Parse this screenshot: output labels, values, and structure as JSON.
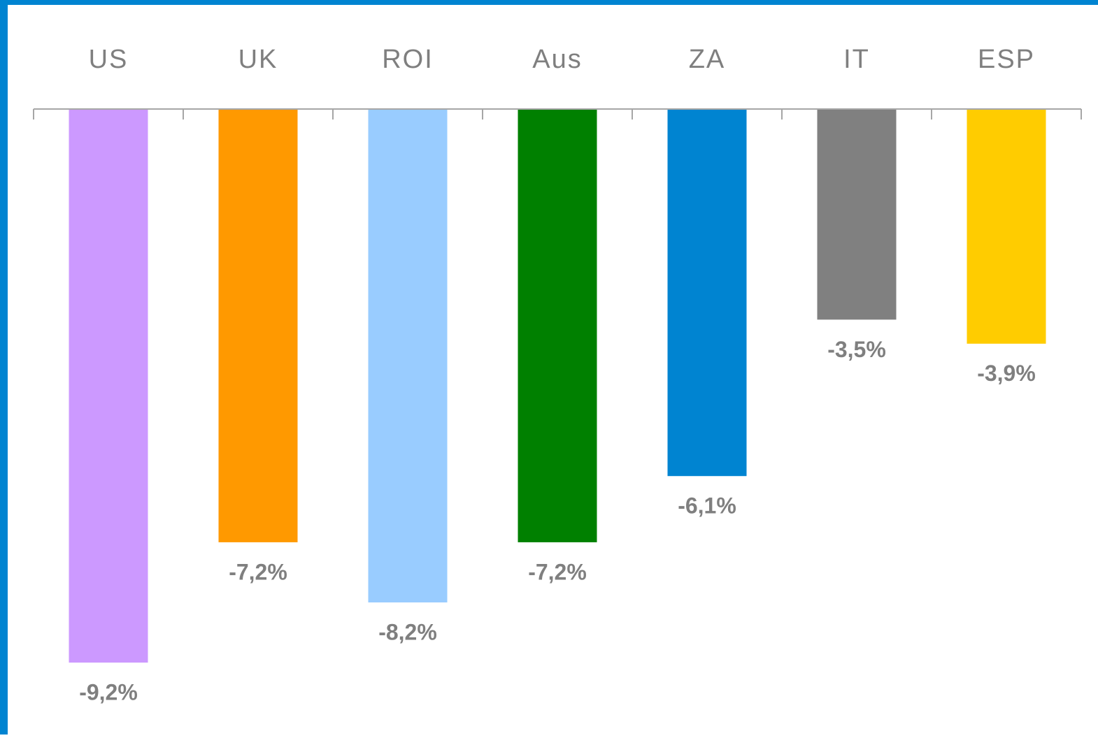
{
  "chart_data": {
    "type": "bar",
    "categories": [
      "US",
      "UK",
      "ROI",
      "Aus",
      "ZA",
      "IT",
      "ESP"
    ],
    "values": [
      -9.2,
      -7.2,
      -8.2,
      -7.2,
      -6.1,
      -3.5,
      -3.9
    ],
    "value_labels": [
      "-9,2%",
      "-7,2%",
      "-8,2%",
      "-7,2%",
      "-6,1%",
      "-3,5%",
      "-3,9%"
    ],
    "colors": [
      "#cc99ff",
      "#ff9900",
      "#99ccff",
      "#008000",
      "#0084d1",
      "#808080",
      "#ffcc00"
    ],
    "ylim": [
      -10,
      0
    ]
  }
}
